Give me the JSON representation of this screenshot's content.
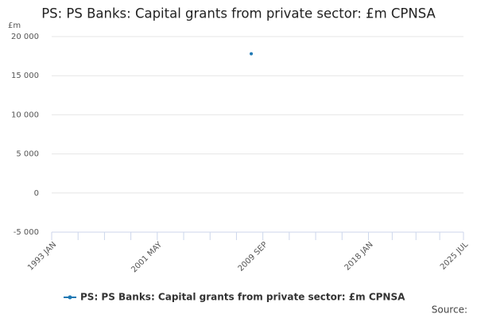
{
  "chart_data": {
    "type": "line",
    "title": "PS: PS Banks: Capital grants from private sector: £m CPNSA",
    "y_unit": "£m",
    "x": [
      "2008 OCT"
    ],
    "series": [
      {
        "name": "PS: PS Banks: Capital grants from private sector: £m CPNSA",
        "color": "#2079b4",
        "values": [
          17800
        ]
      }
    ],
    "xlim": [
      "1993 JAN",
      "2025 JUL"
    ],
    "xticks": [
      "1993 JAN",
      "2001 MAY",
      "2009 SEP",
      "2018 JAN",
      "2025 JUL"
    ],
    "ylim": [
      -5000,
      20000
    ],
    "yticks": [
      {
        "value": -5000,
        "label": "-5 000"
      },
      0,
      {
        "value": 5000,
        "label": "5 000"
      },
      {
        "value": 10000,
        "label": "10 000"
      },
      {
        "value": 15000,
        "label": "15 000"
      },
      {
        "value": 20000,
        "label": "20 000"
      }
    ],
    "grid": true,
    "source": "Source:"
  }
}
